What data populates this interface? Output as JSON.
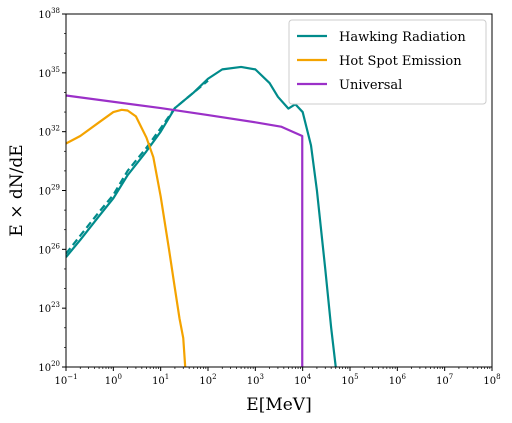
{
  "chart_data": {
    "type": "line",
    "title": "",
    "xlabel": "E[MeV]",
    "ylabel": "E × dN/dE",
    "xscale": "log",
    "yscale": "log",
    "xlim": [
      0.1,
      100000000
    ],
    "ylim": [
      1e+20,
      1e+38
    ],
    "grid": false,
    "legend_position": "top-right",
    "xticks": [
      {
        "value": 0.1,
        "base": "10",
        "exp": "−1"
      },
      {
        "value": 1,
        "base": "10",
        "exp": "0"
      },
      {
        "value": 10,
        "base": "10",
        "exp": "1"
      },
      {
        "value": 100,
        "base": "10",
        "exp": "2"
      },
      {
        "value": 1000,
        "base": "10",
        "exp": "3"
      },
      {
        "value": 10000,
        "base": "10",
        "exp": "4"
      },
      {
        "value": 100000,
        "base": "10",
        "exp": "5"
      },
      {
        "value": 1000000,
        "base": "10",
        "exp": "6"
      },
      {
        "value": 10000000,
        "base": "10",
        "exp": "7"
      },
      {
        "value": 100000000,
        "base": "10",
        "exp": "8"
      }
    ],
    "yticks": [
      {
        "value": 1e+20,
        "base": "10",
        "exp": "20"
      },
      {
        "value": 1e+23,
        "base": "10",
        "exp": "23"
      },
      {
        "value": 1e+26,
        "base": "10",
        "exp": "26"
      },
      {
        "value": 1e+29,
        "base": "10",
        "exp": "29"
      },
      {
        "value": 1e+32,
        "base": "10",
        "exp": "32"
      },
      {
        "value": 1e+35,
        "base": "10",
        "exp": "35"
      },
      {
        "value": 1e+38,
        "base": "10",
        "exp": "38"
      }
    ],
    "series": [
      {
        "name": "Hawking Radiation",
        "color": "#008b8b",
        "dash": false,
        "x": [
          0.1,
          0.2,
          0.5,
          1,
          2,
          5,
          10,
          20,
          50,
          100,
          200,
          500,
          1000,
          2000,
          3000,
          5000,
          7000,
          10000,
          15000,
          20000,
          30000,
          40000,
          50000
        ],
        "y": [
          4e+25,
          3e+26,
          5e+27,
          4e+28,
          6e+29,
          1e+31,
          1e+32,
          1.6e+33,
          1e+34,
          5e+34,
          1.5e+35,
          2e+35,
          1.5e+35,
          3e+34,
          6e+33,
          1.5e+33,
          2.5e+33,
          1e+33,
          2e+31,
          1e+29,
          1e+25,
          1e+22,
          1e+20
        ]
      },
      {
        "name": "",
        "color": "#008b8b",
        "dash": true,
        "x": [
          0.1,
          0.2,
          0.5,
          1,
          2,
          5,
          10,
          20,
          50,
          100
        ],
        "y": [
          6e+25,
          5e+26,
          8e+27,
          6e+28,
          1e+30,
          1.5e+31,
          1.5e+32,
          1.6e+33,
          1e+34,
          4e+34
        ]
      },
      {
        "name": "Hot Spot Emission",
        "color": "#f4a300",
        "dash": false,
        "x": [
          0.1,
          0.2,
          0.5,
          1,
          1.5,
          2,
          3,
          5,
          7,
          10,
          15,
          20,
          25,
          30,
          33
        ],
        "y": [
          2.5e+31,
          6e+31,
          3e+32,
          1e+33,
          1.3e+33,
          1.2e+33,
          6e+32,
          5e+31,
          5e+30,
          5e+28,
          1e+26,
          1e+24,
          3e+22,
          3e+21,
          1e+20
        ]
      },
      {
        "name": "Universal",
        "color": "#9b30c8",
        "dash": false,
        "x": [
          0.1,
          10,
          100,
          1000,
          3500,
          9800,
          9800
        ],
        "y": [
          7e+33,
          1.6e+33,
          7e+32,
          3e+32,
          1.8e+32,
          6e+31,
          1e+20
        ]
      }
    ]
  }
}
